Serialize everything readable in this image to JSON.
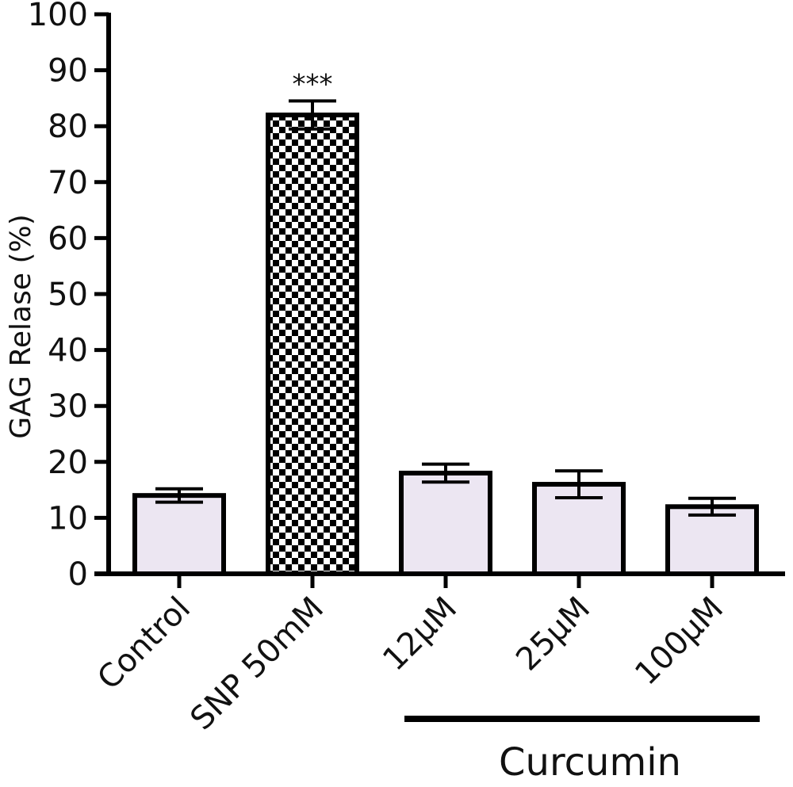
{
  "chart_data": {
    "type": "bar",
    "categories": [
      "Control",
      "SNP 50mM",
      "12µM",
      "25µM",
      "100µM"
    ],
    "values": [
      14,
      82,
      18,
      16,
      12
    ],
    "errors": [
      1.2,
      2.5,
      1.6,
      2.4,
      1.5
    ],
    "bar_fills": [
      "#ece6f2",
      "checker",
      "#ece6f2",
      "#ece6f2",
      "#ece6f2"
    ],
    "significance": [
      {
        "category_index": 1,
        "label": "***"
      }
    ],
    "group_label": {
      "text": "Curcumin",
      "category_indices": [
        2,
        3,
        4
      ]
    },
    "ylabel": "GAG Relase (%)",
    "xlabel": "",
    "ylim": [
      0,
      100
    ],
    "yticks": [
      0,
      10,
      20,
      30,
      40,
      50,
      60,
      70,
      80,
      90,
      100
    ],
    "grid": false
  }
}
